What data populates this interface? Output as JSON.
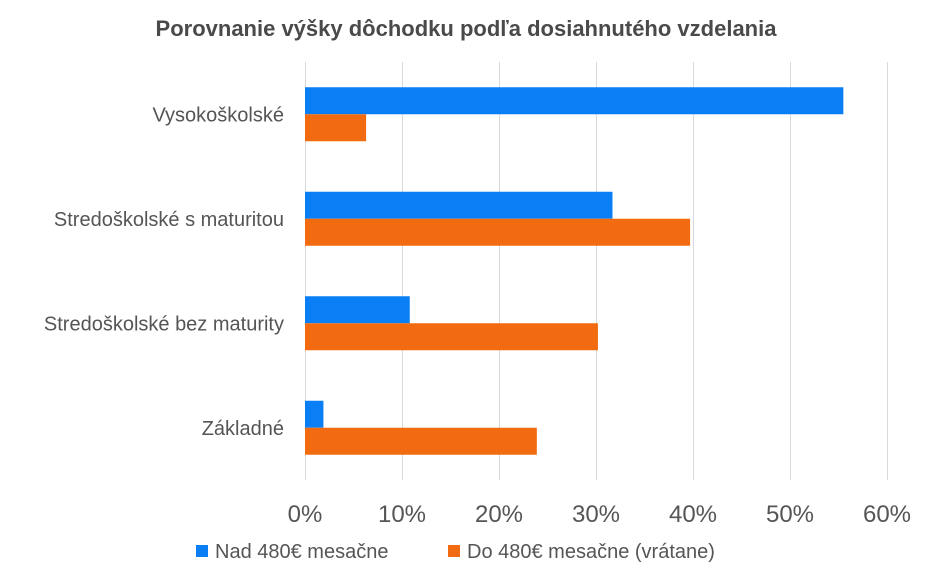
{
  "chart_data": {
    "type": "bar",
    "orientation": "horizontal",
    "title": "Porovnanie výšky dôchodku podľa dosiahnutého vzdelania",
    "categories": [
      "Vysokoškolské",
      "Stredoškolské s maturitou",
      "Stredoškolské bez maturity",
      "Základné"
    ],
    "series": [
      {
        "name": "Nad 480€ mesačne",
        "color": "#0a7ff5",
        "values": [
          55.5,
          31.7,
          10.8,
          1.9
        ]
      },
      {
        "name": "Do 480€ mesačne (vrátane)",
        "color": "#f26b10",
        "values": [
          6.3,
          39.7,
          30.2,
          23.9
        ]
      }
    ],
    "xlim": [
      0,
      60
    ],
    "xticks": [
      0,
      10,
      20,
      30,
      40,
      50,
      60
    ],
    "xtick_labels": [
      "0%",
      "10%",
      "20%",
      "30%",
      "40%",
      "50%",
      "60%"
    ],
    "xlabel": "",
    "ylabel": "",
    "grid": "vertical",
    "legend_position": "bottom"
  }
}
